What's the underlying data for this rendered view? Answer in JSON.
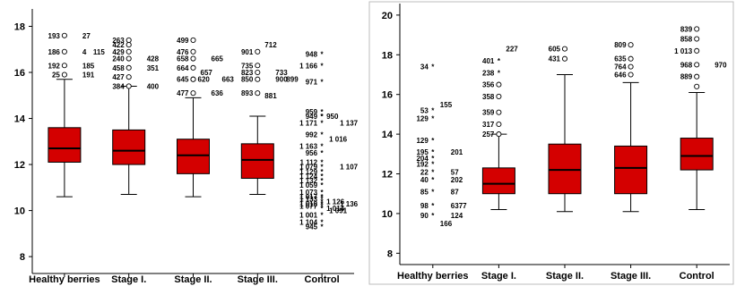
{
  "colors": {
    "box_fill": "#d40000",
    "box_stroke": "#000000",
    "axis": "#000000",
    "frame": "#bdbdbd"
  },
  "chart_data": [
    {
      "type": "box",
      "categories": [
        "Healthy berries",
        "Stage I.",
        "Stage II.",
        "Stage III.",
        "Control"
      ],
      "ylim": [
        7.5,
        18.6
      ],
      "yticks": [
        8,
        10,
        12,
        14,
        16,
        18
      ],
      "ytick_labels": [
        "8",
        "10",
        "12",
        "14",
        "16",
        "18"
      ],
      "frame": false,
      "boxes": [
        {
          "min": 10.6,
          "q1": 12.1,
          "median": 12.7,
          "q3": 13.6,
          "max": 15.7
        },
        {
          "min": 10.7,
          "q1": 12.0,
          "median": 12.6,
          "q3": 13.5,
          "max": 15.4
        },
        {
          "min": 10.6,
          "q1": 11.6,
          "median": 12.4,
          "q3": 13.1,
          "max": 14.9
        },
        {
          "min": 10.7,
          "q1": 11.4,
          "median": 12.2,
          "q3": 12.9,
          "max": 14.1
        },
        {
          "min": null,
          "q1": null,
          "median": null,
          "q3": null,
          "max": null
        }
      ],
      "outliers": [
        {
          "cat": 0,
          "y": 17.6,
          "marker": "circle",
          "label": "193"
        },
        {
          "cat": 0,
          "y": 17.6,
          "marker": "none",
          "label": "27"
        },
        {
          "cat": 0,
          "y": 16.9,
          "marker": "circle",
          "label": "186"
        },
        {
          "cat": 0,
          "y": 16.9,
          "marker": "none",
          "label": "4"
        },
        {
          "cat": 0,
          "y": 16.9,
          "marker": "none",
          "label": "115"
        },
        {
          "cat": 0,
          "y": 16.3,
          "marker": "circle",
          "label": "192"
        },
        {
          "cat": 0,
          "y": 16.3,
          "marker": "none",
          "label": "185"
        },
        {
          "cat": 0,
          "y": 15.9,
          "marker": "circle",
          "label": "25"
        },
        {
          "cat": 0,
          "y": 15.9,
          "marker": "none",
          "label": "191"
        },
        {
          "cat": 1,
          "y": 17.4,
          "marker": "circle",
          "label": "263"
        },
        {
          "cat": 1,
          "y": 17.2,
          "marker": "circle",
          "label": "422"
        },
        {
          "cat": 1,
          "y": 16.9,
          "marker": "circle",
          "label": "429"
        },
        {
          "cat": 1,
          "y": 16.6,
          "marker": "circle",
          "label": "240"
        },
        {
          "cat": 1,
          "y": 16.6,
          "marker": "none",
          "label": "428"
        },
        {
          "cat": 1,
          "y": 16.2,
          "marker": "circle",
          "label": "458"
        },
        {
          "cat": 1,
          "y": 16.2,
          "marker": "none",
          "label": "351"
        },
        {
          "cat": 1,
          "y": 15.8,
          "marker": "circle",
          "label": "427"
        },
        {
          "cat": 1,
          "y": 15.4,
          "marker": "circle",
          "label": "384"
        },
        {
          "cat": 1,
          "y": 15.4,
          "marker": "none",
          "label": "400"
        },
        {
          "cat": 2,
          "y": 17.4,
          "marker": "circle",
          "label": "499"
        },
        {
          "cat": 2,
          "y": 16.9,
          "marker": "circle",
          "label": "476"
        },
        {
          "cat": 2,
          "y": 16.6,
          "marker": "circle",
          "label": "658"
        },
        {
          "cat": 2,
          "y": 16.6,
          "marker": "none",
          "label": "665"
        },
        {
          "cat": 2,
          "y": 16.2,
          "marker": "circle",
          "label": "664"
        },
        {
          "cat": 2,
          "y": 16.0,
          "marker": "none",
          "label": "657"
        },
        {
          "cat": 2,
          "y": 15.7,
          "marker": "circle",
          "label": "645"
        },
        {
          "cat": 2,
          "y": 15.7,
          "marker": "circle",
          "label": "620"
        },
        {
          "cat": 2,
          "y": 15.7,
          "marker": "none",
          "label": "663"
        },
        {
          "cat": 2,
          "y": 15.1,
          "marker": "circle",
          "label": "477"
        },
        {
          "cat": 2,
          "y": 15.1,
          "marker": "none",
          "label": "636"
        },
        {
          "cat": 3,
          "y": 16.9,
          "marker": "circle",
          "label": "901"
        },
        {
          "cat": 3,
          "y": 17.2,
          "marker": "none",
          "label": "712"
        },
        {
          "cat": 3,
          "y": 16.3,
          "marker": "circle",
          "label": "735"
        },
        {
          "cat": 3,
          "y": 16.0,
          "marker": "circle",
          "label": "823"
        },
        {
          "cat": 3,
          "y": 16.0,
          "marker": "none",
          "label": "733"
        },
        {
          "cat": 3,
          "y": 15.7,
          "marker": "circle",
          "label": "850"
        },
        {
          "cat": 3,
          "y": 15.7,
          "marker": "none",
          "label": "900"
        },
        {
          "cat": 3,
          "y": 15.7,
          "marker": "none",
          "label": "899"
        },
        {
          "cat": 3,
          "y": 15.1,
          "marker": "circle",
          "label": "893"
        },
        {
          "cat": 3,
          "y": 15.0,
          "marker": "none",
          "label": "881"
        },
        {
          "cat": 4,
          "y": 16.8,
          "marker": "star",
          "label": "948"
        },
        {
          "cat": 4,
          "y": 16.3,
          "marker": "star",
          "label": "1 166"
        },
        {
          "cat": 4,
          "y": 15.6,
          "marker": "star",
          "label": "971"
        },
        {
          "cat": 4,
          "y": 14.3,
          "marker": "star",
          "label": "959"
        },
        {
          "cat": 4,
          "y": 14.1,
          "marker": "star",
          "label": "949"
        },
        {
          "cat": 4,
          "y": 14.1,
          "marker": "star",
          "label": "950"
        },
        {
          "cat": 4,
          "y": 13.8,
          "marker": "star",
          "label": "1 171"
        },
        {
          "cat": 4,
          "y": 13.8,
          "marker": "none",
          "label": "1 137"
        },
        {
          "cat": 4,
          "y": 13.3,
          "marker": "star",
          "label": "992"
        },
        {
          "cat": 4,
          "y": 13.1,
          "marker": "none",
          "label": "1 016"
        },
        {
          "cat": 4,
          "y": 12.8,
          "marker": "star",
          "label": "1 163"
        },
        {
          "cat": 4,
          "y": 12.5,
          "marker": "star",
          "label": "956"
        },
        {
          "cat": 4,
          "y": 12.1,
          "marker": "star",
          "label": "1 112"
        },
        {
          "cat": 4,
          "y": 11.9,
          "marker": "star",
          "label": "1 079"
        },
        {
          "cat": 4,
          "y": 11.9,
          "marker": "none",
          "label": "1 107"
        },
        {
          "cat": 4,
          "y": 11.7,
          "marker": "star",
          "label": "1 129"
        },
        {
          "cat": 4,
          "y": 11.5,
          "marker": "star",
          "label": "1 124"
        },
        {
          "cat": 4,
          "y": 11.3,
          "marker": "star",
          "label": "1 132"
        },
        {
          "cat": 4,
          "y": 11.1,
          "marker": "star",
          "label": "1 059"
        },
        {
          "cat": 4,
          "y": 10.8,
          "marker": "star",
          "label": "1 073"
        },
        {
          "cat": 4,
          "y": 10.6,
          "marker": "star",
          "label": "1 017"
        },
        {
          "cat": 4,
          "y": 10.5,
          "marker": "star",
          "label": "1 133"
        },
        {
          "cat": 4,
          "y": 10.4,
          "marker": "star",
          "label": "1 126"
        },
        {
          "cat": 4,
          "y": 10.3,
          "marker": "star",
          "label": "1 018"
        },
        {
          "cat": 4,
          "y": 10.3,
          "marker": "none",
          "label": "1 136"
        },
        {
          "cat": 4,
          "y": 10.2,
          "marker": "star",
          "label": "1 077"
        },
        {
          "cat": 4,
          "y": 10.1,
          "marker": "star",
          "label": "1 014"
        },
        {
          "cat": 4,
          "y": 10.0,
          "marker": "none",
          "label": "1 091"
        },
        {
          "cat": 4,
          "y": 9.8,
          "marker": "star",
          "label": "1 001"
        },
        {
          "cat": 4,
          "y": 9.5,
          "marker": "star",
          "label": "1 104"
        },
        {
          "cat": 4,
          "y": 9.3,
          "marker": "star",
          "label": "945"
        }
      ]
    },
    {
      "type": "box",
      "categories": [
        "Healthy berries",
        "Stage I.",
        "Stage II.",
        "Stage III.",
        "Control"
      ],
      "ylim": [
        7.7,
        20.4
      ],
      "yticks": [
        8,
        10,
        12,
        14,
        16,
        18,
        20
      ],
      "ytick_labels": [
        "8",
        "10",
        "12",
        "14",
        "16",
        "18",
        "20"
      ],
      "frame": true,
      "boxes": [
        {
          "min": null,
          "q1": null,
          "median": null,
          "q3": null,
          "max": null
        },
        {
          "min": 10.2,
          "q1": 11.0,
          "median": 11.5,
          "q3": 12.3,
          "max": 14.0
        },
        {
          "min": 10.1,
          "q1": 11.0,
          "median": 12.2,
          "q3": 13.5,
          "max": 17.0
        },
        {
          "min": 10.1,
          "q1": 11.0,
          "median": 12.3,
          "q3": 13.4,
          "max": 16.6
        },
        {
          "min": 10.2,
          "q1": 12.2,
          "median": 12.9,
          "q3": 13.8,
          "max": 16.1
        }
      ],
      "outliers": [
        {
          "cat": 0,
          "y": 17.4,
          "marker": "star",
          "label": "34"
        },
        {
          "cat": 0,
          "y": 15.5,
          "marker": "none",
          "label": "155"
        },
        {
          "cat": 0,
          "y": 15.2,
          "marker": "star",
          "label": "53"
        },
        {
          "cat": 0,
          "y": 14.8,
          "marker": "star",
          "label": "129"
        },
        {
          "cat": 0,
          "y": 13.7,
          "marker": "star",
          "label": "129"
        },
        {
          "cat": 0,
          "y": 13.1,
          "marker": "star",
          "label": "195"
        },
        {
          "cat": 0,
          "y": 13.1,
          "marker": "none",
          "label": "201"
        },
        {
          "cat": 0,
          "y": 12.8,
          "marker": "star",
          "label": "204"
        },
        {
          "cat": 0,
          "y": 12.5,
          "marker": "star",
          "label": "192"
        },
        {
          "cat": 0,
          "y": 12.1,
          "marker": "star",
          "label": "22"
        },
        {
          "cat": 0,
          "y": 12.1,
          "marker": "none",
          "label": "57"
        },
        {
          "cat": 0,
          "y": 11.7,
          "marker": "star",
          "label": "40"
        },
        {
          "cat": 0,
          "y": 11.7,
          "marker": "none",
          "label": "202"
        },
        {
          "cat": 0,
          "y": 11.1,
          "marker": "star",
          "label": "85"
        },
        {
          "cat": 0,
          "y": 11.1,
          "marker": "none",
          "label": "87"
        },
        {
          "cat": 0,
          "y": 10.4,
          "marker": "star",
          "label": "98"
        },
        {
          "cat": 0,
          "y": 10.4,
          "marker": "none",
          "label": "6377"
        },
        {
          "cat": 0,
          "y": 9.9,
          "marker": "star",
          "label": "90"
        },
        {
          "cat": 0,
          "y": 9.9,
          "marker": "none",
          "label": "124"
        },
        {
          "cat": 0,
          "y": 9.5,
          "marker": "none",
          "label": "166"
        },
        {
          "cat": 1,
          "y": 18.3,
          "marker": "none",
          "label": "227"
        },
        {
          "cat": 1,
          "y": 17.7,
          "marker": "star",
          "label": "401"
        },
        {
          "cat": 1,
          "y": 17.1,
          "marker": "star",
          "label": "238"
        },
        {
          "cat": 1,
          "y": 16.5,
          "marker": "circle",
          "label": "356"
        },
        {
          "cat": 1,
          "y": 15.9,
          "marker": "circle",
          "label": "358"
        },
        {
          "cat": 1,
          "y": 15.1,
          "marker": "circle",
          "label": "359"
        },
        {
          "cat": 1,
          "y": 14.5,
          "marker": "circle",
          "label": "317"
        },
        {
          "cat": 1,
          "y": 14.0,
          "marker": "circle",
          "label": "257"
        },
        {
          "cat": 2,
          "y": 18.3,
          "marker": "circle",
          "label": "605"
        },
        {
          "cat": 2,
          "y": 17.8,
          "marker": "circle",
          "label": "431"
        },
        {
          "cat": 3,
          "y": 18.5,
          "marker": "circle",
          "label": "809"
        },
        {
          "cat": 3,
          "y": 17.8,
          "marker": "circle",
          "label": "635"
        },
        {
          "cat": 3,
          "y": 17.4,
          "marker": "circle",
          "label": "764"
        },
        {
          "cat": 3,
          "y": 17.0,
          "marker": "circle",
          "label": "646"
        },
        {
          "cat": 4,
          "y": 19.3,
          "marker": "circle",
          "label": "839"
        },
        {
          "cat": 4,
          "y": 18.8,
          "marker": "circle",
          "label": "858"
        },
        {
          "cat": 4,
          "y": 18.2,
          "marker": "circle",
          "label": "1 013"
        },
        {
          "cat": 4,
          "y": 17.5,
          "marker": "circle",
          "label": "968"
        },
        {
          "cat": 4,
          "y": 17.5,
          "marker": "none",
          "label": "970"
        },
        {
          "cat": 4,
          "y": 16.9,
          "marker": "circle",
          "label": "889"
        },
        {
          "cat": 4,
          "y": 16.4,
          "marker": "circle",
          "label": ""
        }
      ]
    }
  ]
}
